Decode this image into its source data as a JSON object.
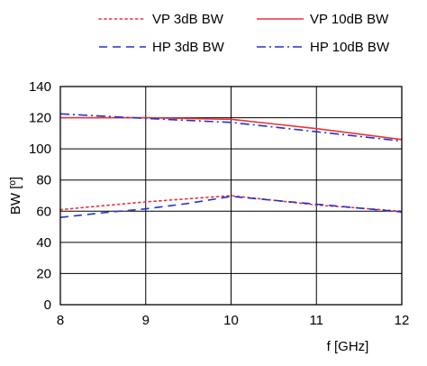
{
  "chart_data": {
    "type": "line",
    "title": "",
    "xlabel": "f  [GHz]",
    "ylabel": "BW [º]",
    "xlim": [
      8,
      12
    ],
    "ylim": [
      0,
      140
    ],
    "xticks": [
      8,
      9,
      10,
      11,
      12
    ],
    "yticks": [
      0,
      20,
      40,
      60,
      80,
      100,
      120,
      140
    ],
    "grid": true,
    "legend_position": "top",
    "series": [
      {
        "name": "VP 3dB BW",
        "color": "#e8323a",
        "dash": "dotted",
        "x": [
          8,
          8.5,
          9,
          9.5,
          10,
          10.5,
          11,
          11.5,
          12
        ],
        "y": [
          61,
          63.5,
          66,
          68,
          70,
          67,
          64,
          62,
          60
        ]
      },
      {
        "name": "VP 10dB BW",
        "color": "#e8323a",
        "dash": "solid",
        "x": [
          8,
          9,
          10,
          10.5,
          11,
          11.5,
          12
        ],
        "y": [
          120,
          120,
          119,
          116,
          113,
          109.5,
          106
        ]
      },
      {
        "name": "HP 3dB BW",
        "color": "#2233cc",
        "dash": "dashed",
        "x": [
          8,
          8.5,
          9,
          9.5,
          10,
          10.5,
          11,
          11.5,
          12
        ],
        "y": [
          56,
          59,
          61.5,
          65,
          69.5,
          67,
          64.5,
          62,
          59.5
        ]
      },
      {
        "name": "HP 10dB BW",
        "color": "#2233cc",
        "dash": "dashdot",
        "x": [
          8,
          9,
          10,
          10.5,
          11,
          11.5,
          12
        ],
        "y": [
          122.5,
          119.5,
          117,
          114,
          111,
          108,
          105
        ]
      }
    ]
  }
}
